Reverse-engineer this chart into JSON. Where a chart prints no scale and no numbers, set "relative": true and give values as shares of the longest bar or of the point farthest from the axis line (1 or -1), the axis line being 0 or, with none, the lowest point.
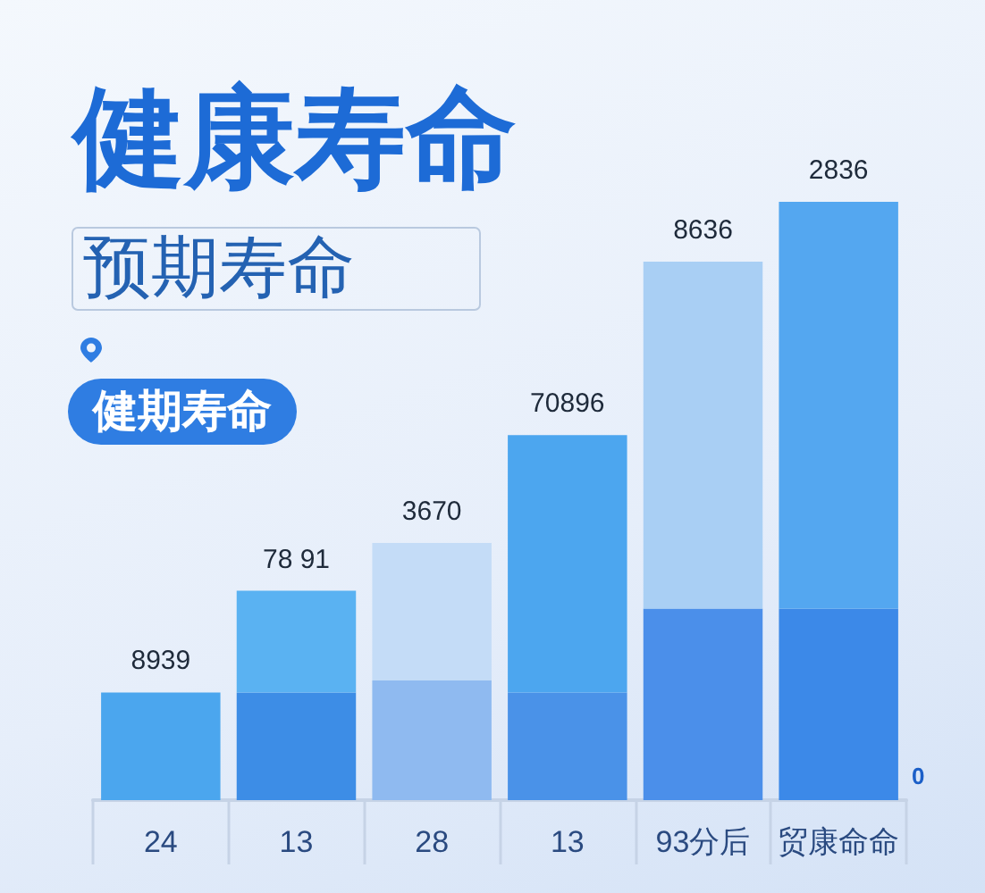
{
  "chart_data": {
    "type": "bar",
    "title": "健康寿命",
    "subtitle": "预期寿命",
    "categories": [
      "24",
      "13",
      "28",
      "13",
      "93分后",
      "贸康命命"
    ],
    "relative": true,
    "stacked": true,
    "series": [
      {
        "values": [
          0.18,
          0.18,
          0.2,
          0.18,
          0.32,
          0.32
        ],
        "colors": [
          "#4ba6ee",
          "#3d8de6",
          "#8fbaf0",
          "#4a92e8",
          "#4b8fea",
          "#3c89e8"
        ]
      },
      {
        "values": [
          null,
          0.17,
          0.23,
          0.43,
          0.58,
          0.68
        ],
        "colors": [
          null,
          "#5ab2f2",
          "#c4dcf7",
          "#4ca6ef",
          "#a9cff4",
          "#54a7f0"
        ]
      }
    ],
    "annotations": [
      "8939",
      "78 91",
      "3670",
      "70896",
      "8636",
      "2836",
      "健期寿命",
      "0"
    ]
  }
}
